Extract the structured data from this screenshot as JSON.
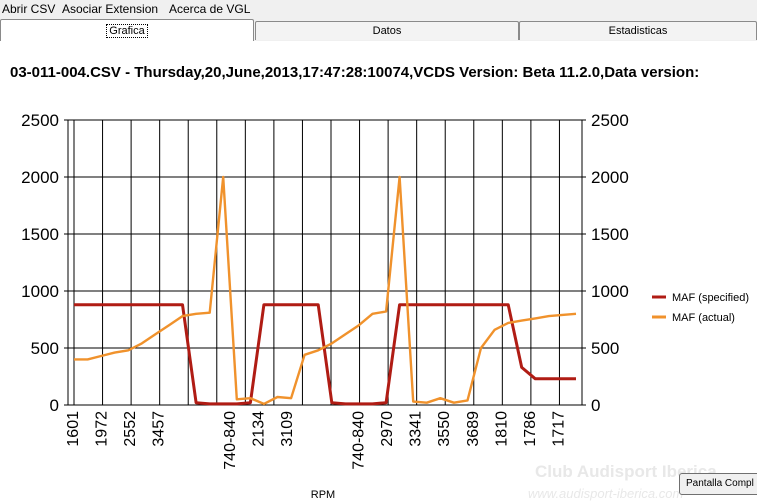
{
  "menu": {
    "items": [
      "Abrir CSV",
      "Asociar Extension",
      "Acerca de VGL"
    ]
  },
  "tabs": [
    {
      "label": "Grafica",
      "active": true
    },
    {
      "label": "Datos",
      "active": false
    },
    {
      "label": "Estadisticas",
      "active": false
    }
  ],
  "header": {
    "title": "03-011-004.CSV - Thursday,20,June,2013,17:47:28:10074,VCDS Version: Beta 11.2.0,Data version:"
  },
  "buttons": {
    "fullscreen_label": "Pantalla Compl"
  },
  "watermark": {
    "line1": "Club Audisport Iberica",
    "line2": "www.audisport-iberica.com"
  },
  "chart_data": {
    "type": "line",
    "xlabel": "RPM",
    "x": [
      "1601",
      "1601",
      "1972",
      "1972",
      "2552",
      "2552",
      "3457",
      "3457",
      "",
      "",
      "",
      "",
      "",
      "740-840",
      "2134",
      "2134",
      "3109",
      "3109",
      "",
      "",
      "",
      "",
      "",
      "740-840",
      "2970",
      "2970",
      "3341",
      "3341",
      "3550",
      "3550",
      "3689",
      "3689",
      "1810",
      "1810",
      "1786",
      "1786",
      "1717",
      "1717"
    ],
    "tick_labels": [
      "1601",
      "1972",
      "2552",
      "3457",
      "740-840",
      "2134",
      "3109",
      "740-840",
      "2970",
      "3341",
      "3550",
      "3689",
      "1810",
      "1786",
      "1717"
    ],
    "ylim": [
      0,
      2500
    ],
    "yticks": [
      0,
      500,
      1000,
      1500,
      2000,
      2500
    ],
    "grid": true,
    "legend_position": "right",
    "series": [
      {
        "name": "MAF (specified)",
        "color": "#b01c14",
        "values": [
          880,
          880,
          880,
          880,
          880,
          880,
          880,
          880,
          880,
          20,
          10,
          10,
          10,
          20,
          880,
          880,
          880,
          880,
          880,
          20,
          10,
          10,
          10,
          20,
          880,
          880,
          880,
          880,
          880,
          880,
          880,
          880,
          880,
          330,
          230,
          230,
          230,
          230
        ]
      },
      {
        "name": "MAF (actual)",
        "color": "#f0922c",
        "values": [
          400,
          400,
          430,
          460,
          480,
          540,
          620,
          700,
          780,
          800,
          810,
          2000,
          50,
          60,
          10,
          70,
          60,
          440,
          480,
          540,
          620,
          700,
          800,
          820,
          2000,
          30,
          20,
          60,
          20,
          40,
          500,
          660,
          720,
          740,
          760,
          780,
          790,
          800
        ]
      }
    ]
  }
}
